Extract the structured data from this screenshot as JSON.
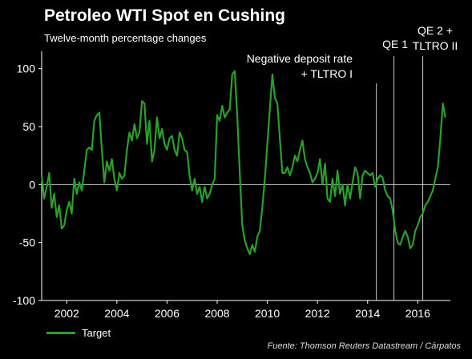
{
  "chart_data": {
    "type": "line",
    "title": "Petroleo WTI Spot en Cushing",
    "subtitle": "Twelve-month percentage changes",
    "xlabel": "",
    "ylabel": "",
    "xlim": [
      2001.0,
      2017.3
    ],
    "ylim": [
      -100,
      115
    ],
    "yticks": [
      100,
      50,
      0,
      -50,
      -100
    ],
    "xticks": [
      "2002",
      "2004",
      "2006",
      "2008",
      "2010",
      "2012",
      "2014",
      "2016"
    ],
    "xtick_values": [
      2002,
      2004,
      2006,
      2008,
      2010,
      2012,
      2014,
      2016
    ],
    "grid": false,
    "legend_position": "bottom-left",
    "series": [
      {
        "name": "Target",
        "color": "#2aa02a",
        "x": [
          2001.0,
          2001.1,
          2001.2,
          2001.3,
          2001.4,
          2001.5,
          2001.6,
          2001.7,
          2001.8,
          2001.9,
          2002.0,
          2002.1,
          2002.2,
          2002.3,
          2002.4,
          2002.5,
          2002.6,
          2002.7,
          2002.8,
          2002.9,
          2003.0,
          2003.1,
          2003.2,
          2003.3,
          2003.4,
          2003.5,
          2003.6,
          2003.7,
          2003.8,
          2003.9,
          2004.0,
          2004.1,
          2004.2,
          2004.3,
          2004.4,
          2004.5,
          2004.6,
          2004.7,
          2004.8,
          2004.9,
          2005.0,
          2005.1,
          2005.2,
          2005.3,
          2005.4,
          2005.5,
          2005.6,
          2005.7,
          2005.8,
          2005.9,
          2006.0,
          2006.1,
          2006.2,
          2006.3,
          2006.4,
          2006.5,
          2006.6,
          2006.7,
          2006.8,
          2006.9,
          2007.0,
          2007.1,
          2007.2,
          2007.3,
          2007.4,
          2007.5,
          2007.6,
          2007.7,
          2007.8,
          2007.9,
          2008.0,
          2008.1,
          2008.2,
          2008.3,
          2008.4,
          2008.5,
          2008.6,
          2008.7,
          2008.8,
          2008.9,
          2009.0,
          2009.1,
          2009.2,
          2009.3,
          2009.4,
          2009.5,
          2009.6,
          2009.7,
          2009.8,
          2009.9,
          2010.0,
          2010.1,
          2010.2,
          2010.3,
          2010.4,
          2010.5,
          2010.6,
          2010.7,
          2010.8,
          2010.9,
          2011.0,
          2011.1,
          2011.2,
          2011.3,
          2011.4,
          2011.5,
          2011.6,
          2011.7,
          2011.8,
          2011.9,
          2012.0,
          2012.1,
          2012.2,
          2012.3,
          2012.4,
          2012.5,
          2012.6,
          2012.7,
          2012.8,
          2012.9,
          2013.0,
          2013.1,
          2013.2,
          2013.3,
          2013.4,
          2013.5,
          2013.6,
          2013.7,
          2013.8,
          2013.9,
          2014.0,
          2014.1,
          2014.2,
          2014.3,
          2014.4,
          2014.5,
          2014.6,
          2014.7,
          2014.8,
          2014.9,
          2015.0,
          2015.1,
          2015.2,
          2015.3,
          2015.4,
          2015.5,
          2015.6,
          2015.7,
          2015.8,
          2015.9,
          2016.0,
          2016.1,
          2016.2,
          2016.3,
          2016.4,
          2016.5,
          2016.6,
          2016.7,
          2016.8,
          2016.9,
          2017.0,
          2017.1
        ],
        "values": [
          8,
          -12,
          -2,
          10,
          -20,
          -8,
          -28,
          -18,
          -38,
          -35,
          -22,
          -15,
          -25,
          5,
          -8,
          2,
          -5,
          12,
          30,
          32,
          30,
          55,
          60,
          62,
          30,
          2,
          20,
          12,
          22,
          5,
          -5,
          10,
          5,
          8,
          30,
          45,
          38,
          52,
          40,
          45,
          72,
          70,
          35,
          55,
          20,
          30,
          58,
          40,
          48,
          35,
          30,
          40,
          42,
          30,
          25,
          45,
          40,
          30,
          28,
          8,
          -5,
          5,
          -8,
          -2,
          -15,
          -2,
          -12,
          -8,
          0,
          5,
          60,
          55,
          68,
          58,
          62,
          65,
          95,
          98,
          60,
          10,
          -35,
          -48,
          -55,
          -60,
          -52,
          -58,
          -45,
          -40,
          -20,
          5,
          35,
          65,
          95,
          75,
          70,
          40,
          10,
          10,
          15,
          8,
          15,
          25,
          20,
          30,
          38,
          22,
          15,
          10,
          2,
          5,
          10,
          22,
          0,
          18,
          -12,
          -15,
          5,
          -10,
          12,
          -8,
          0,
          -18,
          0,
          -12,
          2,
          15,
          10,
          -12,
          8,
          12,
          10,
          8,
          10,
          -2,
          5,
          8,
          6,
          -5,
          -10,
          -12,
          -22,
          -40,
          -50,
          -52,
          -45,
          -40,
          -45,
          -55,
          -52,
          -40,
          -35,
          -28,
          -25,
          -18,
          -15,
          -10,
          -5,
          5,
          15,
          40,
          70,
          58
        ]
      }
    ],
    "annotations": [
      {
        "x": 2014.35,
        "label_lines": [
          "Negative deposit rate",
          "+ TLTRO I"
        ]
      },
      {
        "x": 2015.05,
        "label_lines": [
          "QE 1"
        ]
      },
      {
        "x": 2016.2,
        "label_lines": [
          "QE 2 +",
          "TLTRO II"
        ]
      }
    ]
  },
  "source": "Fuente: Thomson Reuters Datastream / Cárpatos"
}
